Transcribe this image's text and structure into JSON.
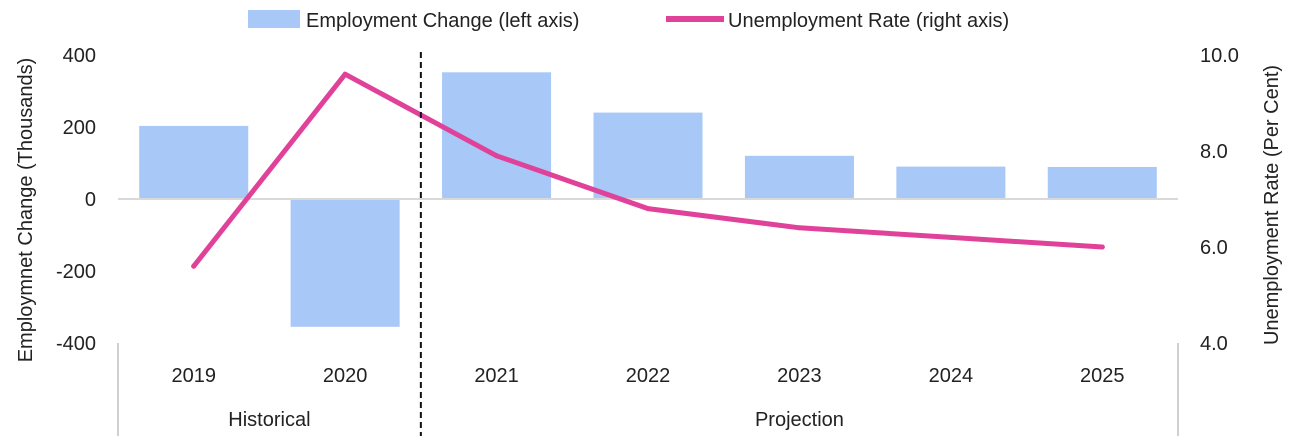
{
  "chart_data": {
    "type": "bar",
    "title": "",
    "categories": [
      "2019",
      "2020",
      "2021",
      "2022",
      "2023",
      "2024",
      "2025"
    ],
    "groups": [
      {
        "label": "Historical",
        "categories": [
          "2019",
          "2020"
        ]
      },
      {
        "label": "Projection",
        "categories": [
          "2021",
          "2022",
          "2023",
          "2024",
          "2025"
        ]
      }
    ],
    "series": [
      {
        "name": "Employment Change (left axis)",
        "type": "bar",
        "axis": "left",
        "color": "#a8c8f8",
        "values": [
          203,
          -355,
          352,
          240,
          120,
          90,
          89
        ]
      },
      {
        "name": "Unemployment Rate (right axis)",
        "type": "line",
        "axis": "right",
        "color": "#e0429a",
        "values": [
          5.6,
          9.6,
          7.9,
          6.8,
          6.4,
          6.2,
          6.0
        ]
      }
    ],
    "left_axis": {
      "label": "Employmnet Change (Thousands)",
      "range": [
        -400,
        400
      ],
      "ticks": [
        "400",
        "200",
        "0",
        "-200",
        "-400"
      ],
      "tick_values": [
        400,
        200,
        0,
        -200,
        -400
      ]
    },
    "right_axis": {
      "label": "Unemployment Rate (Per Cent)",
      "range": [
        4.0,
        10.0
      ],
      "ticks": [
        "10.0",
        "8.0",
        "6.0",
        "4.0"
      ],
      "tick_values": [
        10.0,
        8.0,
        6.0,
        4.0
      ]
    },
    "legend_position": "top",
    "grid": false,
    "divider_between": [
      "2020",
      "2021"
    ]
  }
}
